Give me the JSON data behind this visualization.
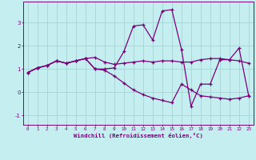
{
  "xlabel": "Windchill (Refroidissement éolien,°C)",
  "xlim": [
    -0.5,
    23.5
  ],
  "ylim": [
    -1.4,
    3.9
  ],
  "yticks": [
    -1,
    0,
    1,
    2,
    3
  ],
  "xticks": [
    0,
    1,
    2,
    3,
    4,
    5,
    6,
    7,
    8,
    9,
    10,
    11,
    12,
    13,
    14,
    15,
    16,
    17,
    18,
    19,
    20,
    21,
    22,
    23
  ],
  "bg_color": "#c5eef0",
  "line_color": "#7b007b",
  "grid_color": "#a8d8da",
  "curve1_x": [
    0,
    1,
    2,
    3,
    4,
    5,
    6,
    7,
    8,
    9,
    10,
    11,
    12,
    13,
    14,
    15,
    16,
    17,
    18,
    19,
    20,
    21,
    22,
    23
  ],
  "curve1_y": [
    0.85,
    1.05,
    1.15,
    1.35,
    1.25,
    1.35,
    1.45,
    1.0,
    1.0,
    1.05,
    1.75,
    2.85,
    2.9,
    2.25,
    3.5,
    3.55,
    1.85,
    -0.6,
    0.35,
    0.35,
    1.4,
    1.4,
    1.9,
    -0.15
  ],
  "curve2_x": [
    0,
    1,
    2,
    3,
    4,
    5,
    6,
    7,
    8,
    9,
    10,
    11,
    12,
    13,
    14,
    15,
    16,
    17,
    18,
    19,
    20,
    21,
    22,
    23
  ],
  "curve2_y": [
    0.85,
    1.05,
    1.15,
    1.35,
    1.25,
    1.35,
    1.45,
    1.5,
    1.3,
    1.2,
    1.25,
    1.3,
    1.35,
    1.3,
    1.35,
    1.35,
    1.3,
    1.3,
    1.4,
    1.45,
    1.45,
    1.4,
    1.35,
    1.25
  ],
  "curve3_x": [
    0,
    1,
    2,
    3,
    4,
    5,
    6,
    7,
    8,
    9,
    10,
    11,
    12,
    13,
    14,
    15,
    16,
    17,
    18,
    19,
    20,
    21,
    22,
    23
  ],
  "curve3_y": [
    0.85,
    1.05,
    1.15,
    1.35,
    1.25,
    1.35,
    1.45,
    1.0,
    0.95,
    0.7,
    0.4,
    0.1,
    -0.1,
    -0.25,
    -0.35,
    -0.45,
    0.35,
    0.1,
    -0.15,
    -0.2,
    -0.25,
    -0.3,
    -0.25,
    -0.15
  ]
}
